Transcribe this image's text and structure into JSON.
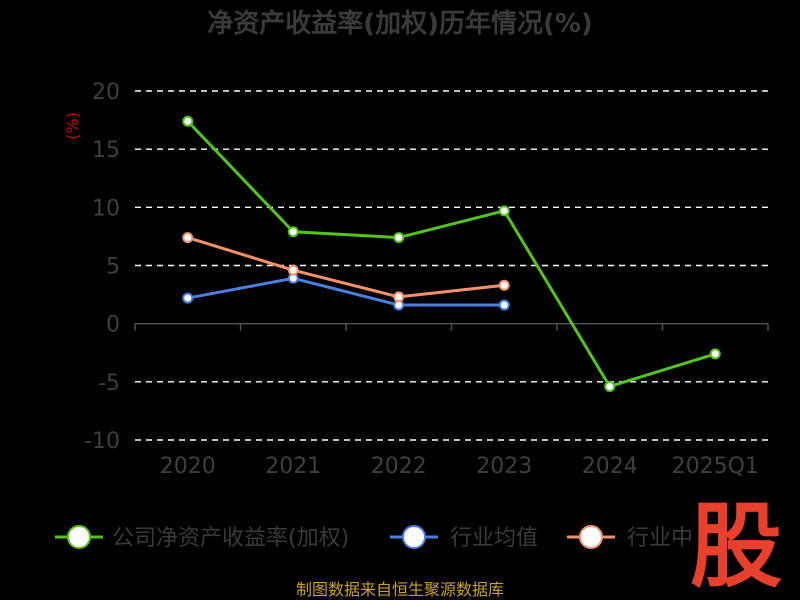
{
  "title": "净资产收益率(加权)历年情况(%)",
  "unit_label": "(%)",
  "source": "制图数据来自恒生聚源数据库",
  "watermark": "股",
  "colors": {
    "background": "#000000",
    "grid": "#ffffff",
    "axis": "#555555",
    "text": "#3f3f3f",
    "unit": "#cc0000",
    "source": "#c9a227",
    "watermark": "#e8402c"
  },
  "chart_data": {
    "type": "line",
    "title": "净资产收益率(加权)历年情况(%)",
    "ylabel": "(%)",
    "xlabel": "",
    "categories": [
      "2020",
      "2021",
      "2022",
      "2023",
      "2024",
      "2025Q1"
    ],
    "ylim": [
      -10,
      20
    ],
    "yticks": [
      20,
      15,
      10,
      5,
      0,
      -5,
      -10
    ],
    "grid": true,
    "legend_position": "bottom",
    "series": [
      {
        "name": "公司净资产收益率(加权)",
        "color": "#52c41a",
        "values": [
          17.4,
          7.9,
          7.4,
          9.7,
          -5.4,
          -2.6
        ]
      },
      {
        "name": "行业均值",
        "color": "#4a7fe0",
        "values": [
          2.2,
          3.9,
          1.6,
          1.6,
          null,
          null
        ]
      },
      {
        "name": "行业中位数",
        "color": "#f5916a",
        "values": [
          7.4,
          4.6,
          2.3,
          3.3,
          null,
          null
        ]
      }
    ],
    "legend_visible_texts": [
      "公司净资产收益率(加权)",
      "行业均值",
      "行业中"
    ]
  }
}
